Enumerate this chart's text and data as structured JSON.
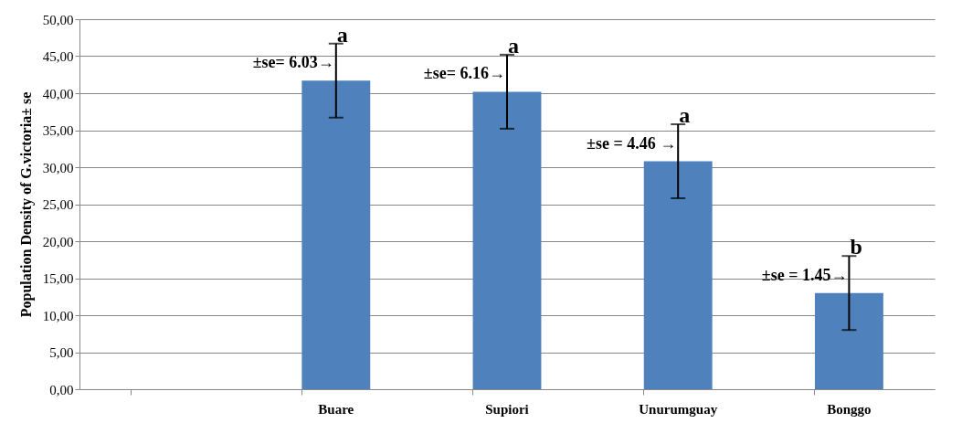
{
  "chart_data": {
    "type": "bar",
    "ylabel": "Population Density of G.victoria± se",
    "categories": [
      null,
      "Buare",
      "Supiori",
      "Unurumguay",
      "Bonggo"
    ],
    "values": [
      null,
      41.7,
      40.2,
      30.8,
      13.0
    ],
    "errors": [
      null,
      5,
      5,
      5,
      5
    ],
    "color": "#4f81bd",
    "ylim": [
      0,
      50
    ],
    "yticks": [
      {
        "value": 0,
        "label": "0,00"
      },
      {
        "value": 5,
        "label": "5,00"
      },
      {
        "value": 10,
        "label": "10,00"
      },
      {
        "value": 15,
        "label": "15,00"
      },
      {
        "value": 20,
        "label": "20,00"
      },
      {
        "value": 25,
        "label": "25,00"
      },
      {
        "value": 30,
        "label": "30,00"
      },
      {
        "value": 35,
        "label": "35,00"
      },
      {
        "value": 40,
        "label": "40,00"
      },
      {
        "value": 45,
        "label": "45,00"
      },
      {
        "value": 50,
        "label": "50,00"
      }
    ],
    "grid": "y",
    "annotations": [
      {
        "text": "a",
        "x": "Buare",
        "y": 46.7
      },
      {
        "text": "±se= 6.03→",
        "x": "Buare",
        "y": 41.7
      },
      {
        "text": "a",
        "x": "Supiori",
        "y": 45.2
      },
      {
        "text": "±se= 6.16→",
        "x": "Supiori",
        "y": 40.2
      },
      {
        "text": "a",
        "x": "Unurumguay",
        "y": 35.8
      },
      {
        "text": "±se = 4.46 →",
        "x": "Unurumguay",
        "y": 30.8
      },
      {
        "text": "b",
        "x": "Bonggo",
        "y": 18.0
      },
      {
        "text": "±se = 1.45→",
        "x": "Bonggo",
        "y": 13.0
      }
    ]
  }
}
